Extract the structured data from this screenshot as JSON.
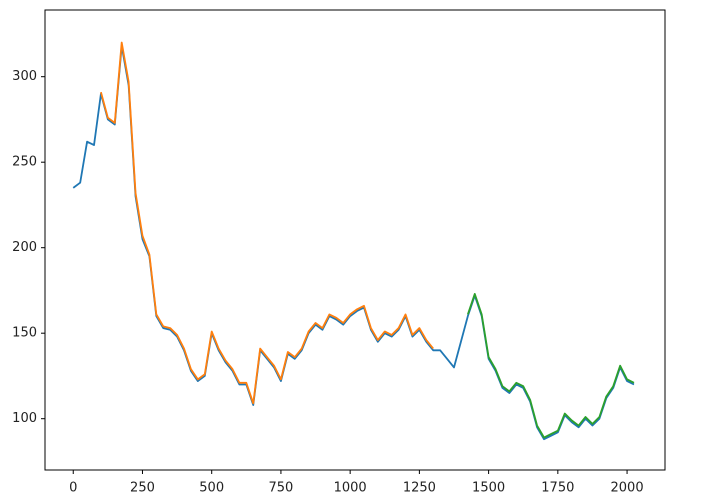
{
  "chart_data": {
    "type": "line",
    "x": [
      0,
      25,
      50,
      75,
      100,
      125,
      150,
      175,
      200,
      225,
      250,
      275,
      300,
      325,
      350,
      375,
      400,
      425,
      450,
      475,
      500,
      525,
      550,
      575,
      600,
      625,
      650,
      675,
      700,
      725,
      750,
      775,
      800,
      825,
      850,
      875,
      900,
      925,
      950,
      975,
      1000,
      1025,
      1050,
      1075,
      1100,
      1125,
      1150,
      1175,
      1200,
      1225,
      1250,
      1275,
      1300,
      1325,
      1350,
      1375,
      1400,
      1425,
      1450,
      1475,
      1500,
      1525,
      1550,
      1575,
      1600,
      1625,
      1650,
      1675,
      1700,
      1725,
      1750,
      1775,
      1800,
      1825,
      1850,
      1875,
      1900,
      1925,
      1950,
      1975,
      2000,
      2025
    ],
    "series": [
      {
        "color": "#1f77b4",
        "values": [
          235,
          238,
          262,
          260,
          290,
          275,
          272,
          318,
          295,
          230,
          205,
          195,
          160,
          153,
          152,
          148,
          140,
          128,
          122,
          125,
          150,
          140,
          133,
          128,
          120,
          120,
          108,
          140,
          135,
          130,
          122,
          138,
          135,
          140,
          150,
          155,
          152,
          160,
          158,
          155,
          160,
          163,
          165,
          152,
          145,
          150,
          148,
          152,
          160,
          148,
          152,
          145,
          140,
          140,
          135,
          130,
          145,
          160,
          172,
          160,
          135,
          128,
          118,
          115,
          120,
          118,
          110,
          95,
          88,
          90,
          92,
          102,
          98,
          95,
          100,
          96,
          100,
          112,
          118,
          130,
          122,
          120
        ]
      },
      {
        "color": "#ff7f0e",
        "values": [
          null,
          null,
          null,
          null,
          291,
          276,
          273,
          320,
          297,
          232,
          207,
          196,
          161,
          154,
          153,
          149,
          141,
          129,
          123,
          126,
          151,
          141,
          134,
          129,
          121,
          121,
          109,
          141,
          136,
          131,
          123,
          139,
          136,
          141,
          151,
          156,
          153,
          161,
          159,
          156,
          161,
          164,
          166,
          153,
          146,
          151,
          149,
          153,
          161,
          149,
          153,
          146,
          141,
          null,
          null,
          null,
          null,
          null,
          null,
          null,
          null,
          null,
          null,
          null,
          null,
          null,
          null,
          null,
          null,
          null,
          null,
          null,
          null,
          null,
          null,
          null,
          null,
          null,
          null,
          null,
          null,
          null
        ]
      },
      {
        "color": "#2ca02c",
        "values": [
          null,
          null,
          null,
          null,
          null,
          null,
          null,
          null,
          null,
          null,
          null,
          null,
          null,
          null,
          null,
          null,
          null,
          null,
          null,
          null,
          null,
          null,
          null,
          null,
          null,
          null,
          null,
          null,
          null,
          null,
          null,
          null,
          null,
          null,
          null,
          null,
          null,
          null,
          null,
          null,
          null,
          null,
          null,
          null,
          null,
          null,
          null,
          null,
          null,
          null,
          null,
          null,
          null,
          null,
          null,
          null,
          null,
          161,
          173,
          161,
          136,
          129,
          119,
          116,
          121,
          119,
          111,
          96,
          89,
          91,
          93,
          103,
          99,
          96,
          101,
          97,
          101,
          113,
          119,
          131,
          123,
          121
        ]
      }
    ],
    "xlim": [
      -102,
      2137
    ],
    "ylim": [
      70,
      339
    ],
    "xticks": [
      0,
      250,
      500,
      750,
      1000,
      1250,
      1500,
      1750,
      2000
    ],
    "yticks": [
      100,
      150,
      200,
      250,
      300
    ]
  }
}
